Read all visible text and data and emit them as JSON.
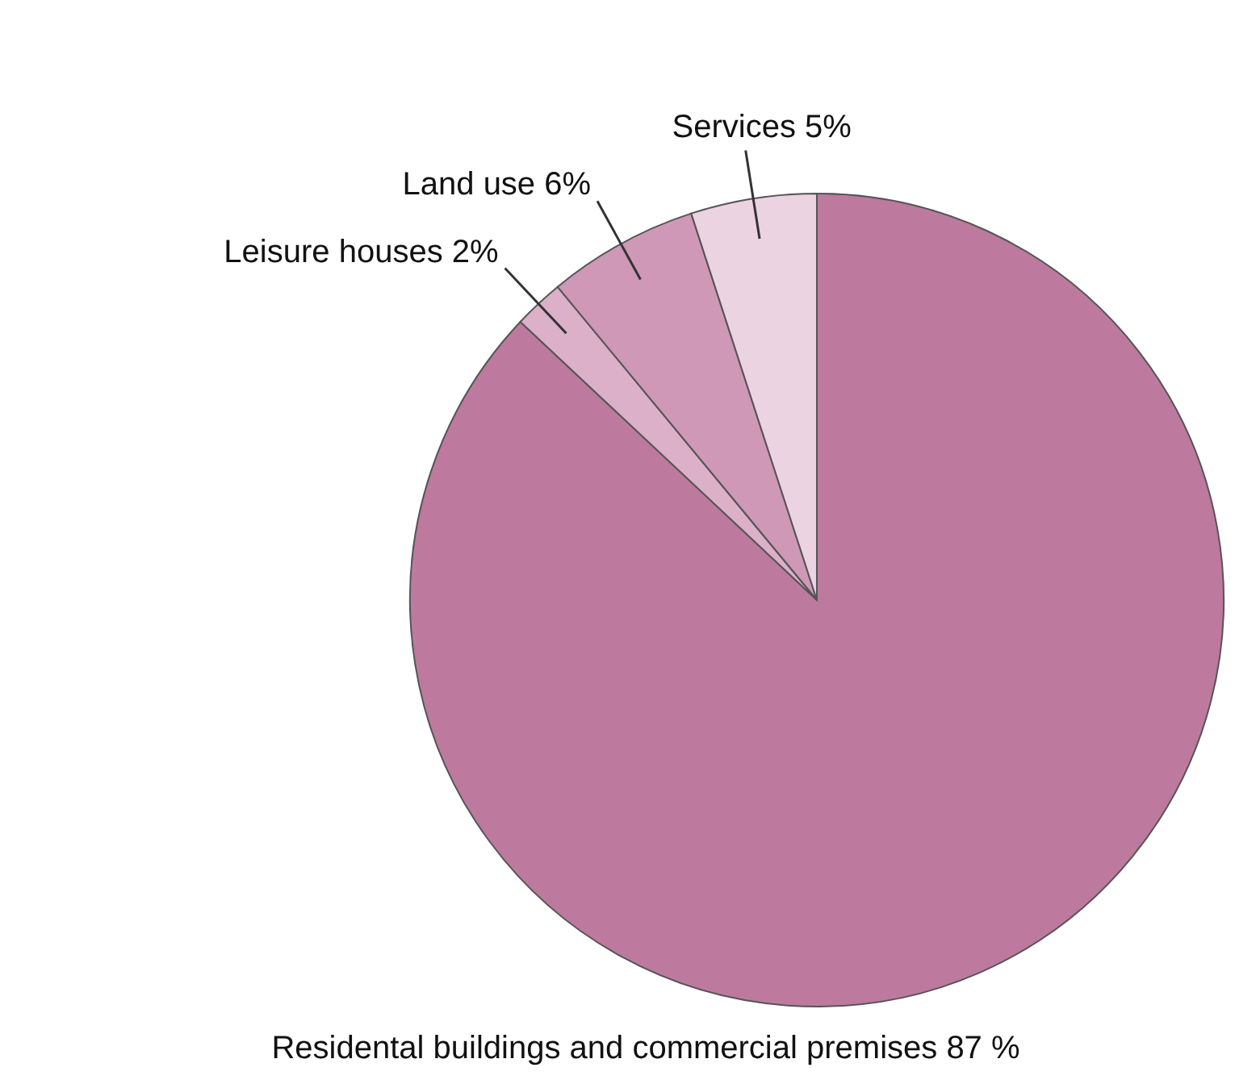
{
  "chart_data": {
    "type": "pie",
    "categories": [
      "Residental buildings and commercial premises 87 %",
      "Leisure houses 2%",
      "Land use 6%",
      "Services 5%"
    ],
    "values": [
      87,
      2,
      6,
      5
    ],
    "colors": [
      "#bd7a9e",
      "#dcb0c8",
      "#cf98b6",
      "#ecd3e2"
    ]
  }
}
